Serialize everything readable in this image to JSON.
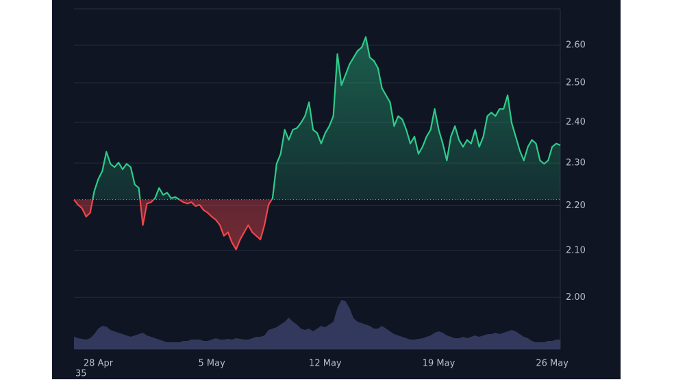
{
  "chart_data": {
    "type": "baseline",
    "values": [
      2.214,
      2.202,
      2.194,
      2.175,
      2.184,
      2.233,
      2.262,
      2.281,
      2.327,
      2.298,
      2.29,
      2.301,
      2.285,
      2.298,
      2.29,
      2.249,
      2.241,
      2.156,
      2.205,
      2.208,
      2.217,
      2.241,
      2.225,
      2.23,
      2.217,
      2.22,
      2.214,
      2.208,
      2.205,
      2.208,
      2.199,
      2.202,
      2.19,
      2.184,
      2.175,
      2.168,
      2.156,
      2.132,
      2.14,
      2.117,
      2.102,
      2.124,
      2.14,
      2.156,
      2.14,
      2.132,
      2.124,
      2.156,
      2.202,
      2.217,
      2.298,
      2.322,
      2.381,
      2.356,
      2.381,
      2.385,
      2.398,
      2.415,
      2.45,
      2.381,
      2.373,
      2.347,
      2.373,
      2.39,
      2.415,
      2.576,
      2.494,
      2.521,
      2.549,
      2.567,
      2.585,
      2.594,
      2.622,
      2.567,
      2.558,
      2.539,
      2.486,
      2.468,
      2.45,
      2.39,
      2.415,
      2.407,
      2.381,
      2.347,
      2.364,
      2.322,
      2.339,
      2.364,
      2.381,
      2.433,
      2.381,
      2.347,
      2.306,
      2.364,
      2.39,
      2.356,
      2.339,
      2.356,
      2.347,
      2.381,
      2.339,
      2.364,
      2.415,
      2.424,
      2.415,
      2.433,
      2.433,
      2.468,
      2.398,
      2.364,
      2.33,
      2.306,
      2.339,
      2.356,
      2.347,
      2.306,
      2.298,
      2.306,
      2.339,
      2.347,
      2.343
    ],
    "baseline": 2.214,
    "colors": {
      "up": "#2ecc8a",
      "down": "#f0454b"
    },
    "log_scale": true,
    "ylim": [
      1.895,
      2.7
    ],
    "yticks": [
      {
        "value": 2.0,
        "label": "2.00"
      },
      {
        "value": 2.1,
        "label": "2.10"
      },
      {
        "value": 2.2,
        "label": "2.20"
      },
      {
        "value": 2.3,
        "label": "2.30"
      },
      {
        "value": 2.4,
        "label": "2.40"
      },
      {
        "value": 2.5,
        "label": "2.50"
      },
      {
        "value": 2.6,
        "label": "2.60"
      }
    ],
    "xlim": [
      0,
      120
    ],
    "xticks": [
      {
        "value": 6,
        "label": "28 Apr"
      },
      {
        "value": 34,
        "label": "5 May"
      },
      {
        "value": 62,
        "label": "12 May"
      },
      {
        "value": 90,
        "label": "19 May"
      },
      {
        "value": 118,
        "label": "26 May"
      }
    ],
    "grid": true,
    "volume": {
      "color": "#3a4066",
      "ylim": [
        0,
        100
      ],
      "values": [
        18,
        16,
        15,
        14,
        16,
        22,
        30,
        34,
        33,
        28,
        26,
        24,
        22,
        20,
        18,
        20,
        22,
        24,
        20,
        18,
        16,
        14,
        12,
        10,
        10,
        10,
        10,
        12,
        12,
        14,
        14,
        14,
        12,
        12,
        14,
        16,
        14,
        14,
        15,
        14,
        16,
        15,
        14,
        14,
        16,
        18,
        18,
        20,
        28,
        30,
        32,
        36,
        40,
        46,
        40,
        36,
        30,
        28,
        30,
        26,
        30,
        34,
        32,
        36,
        40,
        60,
        72,
        70,
        60,
        45,
        40,
        38,
        36,
        34,
        30,
        30,
        34,
        30,
        26,
        22,
        20,
        18,
        16,
        14,
        14,
        15,
        16,
        18,
        20,
        24,
        26,
        24,
        20,
        18,
        16,
        16,
        18,
        16,
        18,
        20,
        18,
        20,
        22,
        22,
        24,
        22,
        24,
        26,
        28,
        26,
        22,
        18,
        16,
        12,
        10,
        10,
        10,
        12,
        12,
        14,
        14
      ]
    },
    "corner_label": "35"
  }
}
